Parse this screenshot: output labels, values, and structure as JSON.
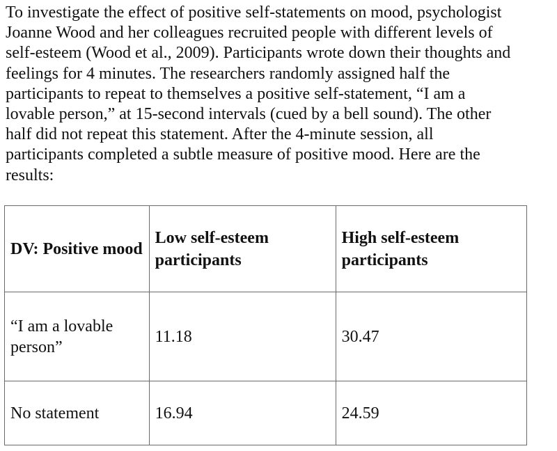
{
  "paragraph": {
    "lines": [
      "To investigate the effect of positive self-statements on mood, psychologist",
      "Joanne Wood and her colleagues recruited people with different levels of",
      "self-esteem (Wood et al., 2009). Participants wrote down their thoughts and",
      "feelings for 4 minutes. The researchers randomly assigned half the",
      "participants to repeat to themselves a positive self-statement, “I am a",
      "lovable person,” at 15-second intervals (cued by a bell sound). The other",
      "half did not repeat this statement. After the 4-minute session, all",
      "participants completed a subtle measure of positive mood. Here are the",
      "results:"
    ]
  },
  "table": {
    "headers": [
      "DV: Positive mood",
      "Low self-esteem participants",
      "High self-esteem participants"
    ],
    "rows": [
      {
        "label": "“I am a lovable person”",
        "low": "11.18",
        "high": "30.47"
      },
      {
        "label": "No statement",
        "low": "16.94",
        "high": "24.59"
      }
    ]
  }
}
